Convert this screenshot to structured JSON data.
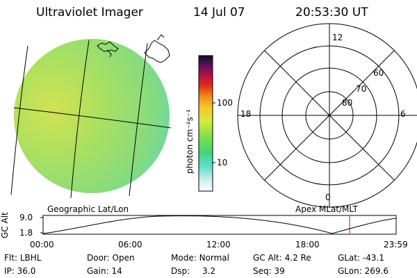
{
  "header": {
    "title": "Ultraviolet Imager",
    "date": "14 Jul 07",
    "time": "20:53:30 UT"
  },
  "colorbar": {
    "label": "photon cm⁻²s⁻¹",
    "ticks": [
      "100",
      "10"
    ]
  },
  "map_labels": {
    "left": "Geographic Lat/Lon",
    "right": "Apex MLat/MLT"
  },
  "polar_plot": {
    "mlt_labels": [
      "12",
      "18",
      "6",
      "0"
    ],
    "lat_labels": [
      "60",
      "70",
      "80"
    ]
  },
  "altitude_plot": {
    "ylabel": "GC Alt",
    "yticks": [
      "9.0",
      "1.8"
    ],
    "xticks": [
      "00:00",
      "06:00",
      "12:00",
      "18:00",
      "23:59"
    ],
    "marker_color": "#cc0000"
  },
  "metadata": {
    "row1": [
      {
        "label": "Flt:",
        "value": "LBHL"
      },
      {
        "label": "Door:",
        "value": "Open"
      },
      {
        "label": "Mode:",
        "value": "Normal"
      },
      {
        "label": "GC Alt:",
        "value": "4.2 Re"
      },
      {
        "label": "GLat:",
        "value": "-43.1"
      }
    ],
    "row2": [
      {
        "label": "IP:",
        "value": "36.0"
      },
      {
        "label": "Gain:",
        "value": "14"
      },
      {
        "label": "Dsp:",
        "value": "3.2"
      },
      {
        "label": "Seq:",
        "value": "39"
      },
      {
        "label": "GLon:",
        "value": "269.6"
      }
    ]
  }
}
